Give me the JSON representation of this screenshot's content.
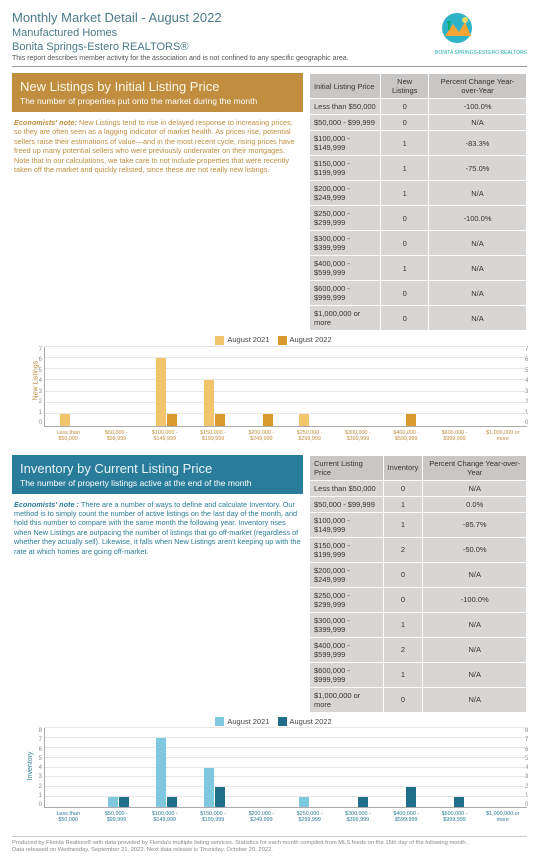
{
  "header": {
    "title": "Monthly Market Detail - August 2022",
    "subtitle": "Manufactured Homes",
    "org": "Bonita Springs-Estero REALTORS®",
    "note": "This report describes member activity for the association and is not confined to any specific geographic area.",
    "logo_text": "BONITA SPRINGS-ESTERO REALTORS"
  },
  "section1": {
    "title": "New Listings by Initial Listing Price",
    "sub": "The number of properties put onto the market during the month",
    "note_label": "Economists' note:",
    "note_body": "New Listings tend to rise in delayed response to increasing prices, so they are often seen as a lagging indicator of market health. As prices rise, potential sellers raise their estimations of value—and in the most recent cycle, rising prices have freed up many potential sellers who were previously underwater on their mortgages. Note that in our calculations, we take care to not include properties that were recently taken off the market and quickly relisted, since these are not really new listings.",
    "table": {
      "headers": [
        "Initial Listing Price",
        "New Listings",
        "Percent Change Year-over-Year"
      ],
      "rows": [
        [
          "Less than $50,000",
          "0",
          "-100.0%"
        ],
        [
          "$50,000 - $99,999",
          "0",
          "N/A"
        ],
        [
          "$100,000 - $149,999",
          "1",
          "-83.3%"
        ],
        [
          "$150,000 - $199,999",
          "1",
          "-75.0%"
        ],
        [
          "$200,000 - $249,999",
          "1",
          "N/A"
        ],
        [
          "$250,000 - $299,999",
          "0",
          "-100.0%"
        ],
        [
          "$300,000 - $399,999",
          "0",
          "N/A"
        ],
        [
          "$400,000 - $599,999",
          "1",
          "N/A"
        ],
        [
          "$600,000 - $999,999",
          "0",
          "N/A"
        ],
        [
          "$1,000,000 or more",
          "0",
          "N/A"
        ]
      ]
    },
    "chart": {
      "type": "bar",
      "ymax": 7,
      "yticks": [
        0,
        1,
        2,
        3,
        4,
        5,
        6,
        7
      ],
      "categories": [
        "Less than $50,000",
        "$50,000 - $99,999",
        "$100,000 - $149,999",
        "$150,000 - $199,999",
        "$200,000 - $249,999",
        "$250,000 - $299,999",
        "$300,000 - $399,999",
        "$400,000 - $599,999",
        "$600,000 - $999,999",
        "$1,000,000 or more"
      ],
      "series": [
        {
          "name": "August 2021",
          "color": "#f2c46b",
          "values": [
            1,
            0,
            6,
            4,
            0,
            1,
            0,
            0,
            0,
            0
          ]
        },
        {
          "name": "August 2022",
          "color": "#d89a2f",
          "values": [
            0,
            0,
            1,
            1,
            1,
            0,
            0,
            1,
            0,
            0
          ]
        }
      ],
      "y_label": "New Listings"
    }
  },
  "section2": {
    "title": "Inventory by Current Listing Price",
    "sub": "The number of property listings active at the end of the month",
    "note_label": "Economists' note :",
    "note_body": "There are a number of ways to define and calculate Inventory. Our method is to simply count the number of active listings on the last day of the month, and hold this number to compare with the same month the following year. Inventory rises when New Listings are outpacing the number of listings that go off-market (regardless of whether they actually sell). Likewise, it falls when New Listings aren't keeping up with the rate at which homes are going off-market.",
    "table": {
      "headers": [
        "Current Listing Price",
        "Inventory",
        "Percent Change Year-over-Year"
      ],
      "rows": [
        [
          "Less than $50,000",
          "0",
          "N/A"
        ],
        [
          "$50,000 - $99,999",
          "1",
          "0.0%"
        ],
        [
          "$100,000 - $149,999",
          "1",
          "-85.7%"
        ],
        [
          "$150,000 - $199,999",
          "2",
          "-50.0%"
        ],
        [
          "$200,000 - $249,999",
          "0",
          "N/A"
        ],
        [
          "$250,000 - $299,999",
          "0",
          "-100.0%"
        ],
        [
          "$300,000 - $399,999",
          "1",
          "N/A"
        ],
        [
          "$400,000 - $599,999",
          "2",
          "N/A"
        ],
        [
          "$600,000 - $999,999",
          "1",
          "N/A"
        ],
        [
          "$1,000,000 or more",
          "0",
          "N/A"
        ]
      ]
    },
    "chart": {
      "type": "bar",
      "ymax": 8,
      "yticks": [
        0,
        1,
        2,
        3,
        4,
        5,
        6,
        7,
        8
      ],
      "categories": [
        "Less than $50,000",
        "$50,000 - $99,999",
        "$100,000 - $149,999",
        "$150,000 - $199,999",
        "$200,000 - $249,999",
        "$250,000 - $299,999",
        "$300,000 - $399,999",
        "$400,000 - $599,999",
        "$600,000 - $999,999",
        "$1,000,000 or more"
      ],
      "series": [
        {
          "name": "August 2021",
          "color": "#7ec8e0",
          "values": [
            0,
            1,
            7,
            4,
            0,
            1,
            0,
            0,
            0,
            0
          ]
        },
        {
          "name": "August 2022",
          "color": "#1f6f8b",
          "values": [
            0,
            1,
            1,
            2,
            0,
            0,
            1,
            2,
            1,
            0
          ]
        }
      ],
      "y_label": "Inventory"
    }
  },
  "footer": {
    "line1": "Produced by Florida Realtors® with data provided by Florida's multiple listing services. Statistics for each month compiled from MLS feeds on the 15th day of the following month.",
    "line2": "Data released on Wednesday, September 21, 2022. Next data release is Thursday, October 20, 2022."
  }
}
